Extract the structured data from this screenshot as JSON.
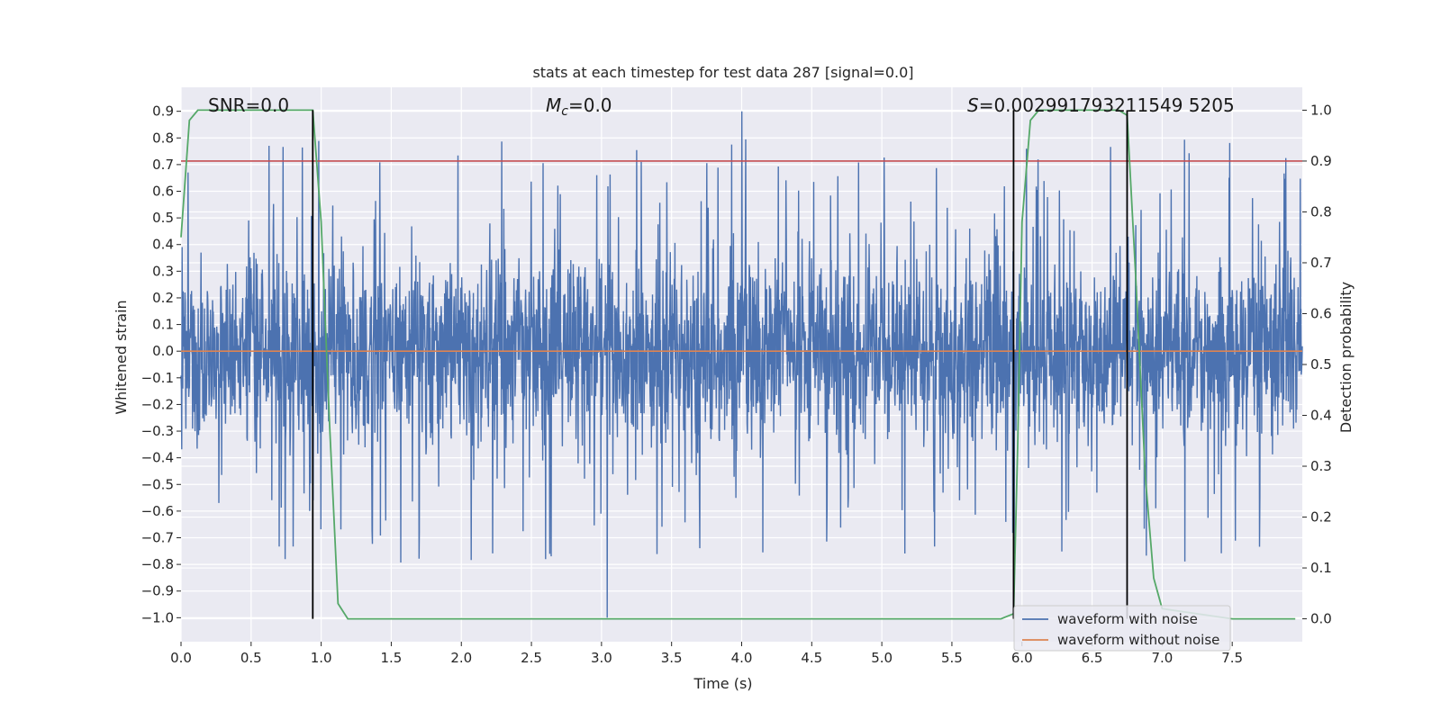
{
  "chart_data": {
    "type": "line",
    "title": "stats at each timestep for test data 287 [signal=0.0]",
    "xlabel": "Time (s)",
    "ylabel_left": "Whitened strain",
    "ylabel_right": "Detection probability",
    "xlim": [
      0.0,
      8.0
    ],
    "ylim_left": [
      -1.09,
      0.99
    ],
    "ylim_right": [
      -0.045,
      1.045
    ],
    "x_ticks": [
      0.0,
      0.5,
      1.0,
      1.5,
      2.0,
      2.5,
      3.0,
      3.5,
      4.0,
      4.5,
      5.0,
      5.5,
      6.0,
      6.5,
      7.0,
      7.5
    ],
    "x_tick_labels": [
      "0.0",
      "0.5",
      "1.0",
      "1.5",
      "2.0",
      "2.5",
      "3.0",
      "3.5",
      "4.0",
      "4.5",
      "5.0",
      "5.5",
      "6.0",
      "6.5",
      "7.0",
      "7.5"
    ],
    "y_left_ticks": [
      0.9,
      0.8,
      0.7,
      0.6,
      0.5,
      0.4,
      0.3,
      0.2,
      0.1,
      0.0,
      -0.1,
      -0.2,
      -0.3,
      -0.4,
      -0.5,
      -0.6,
      -0.7,
      -0.8,
      -0.9,
      -1.0
    ],
    "y_left_tick_labels": [
      "0.9",
      "0.8",
      "0.7",
      "0.6",
      "0.5",
      "0.4",
      "0.3",
      "0.2",
      "0.1",
      "0.0",
      "−0.1",
      "−0.2",
      "−0.3",
      "−0.4",
      "−0.5",
      "−0.6",
      "−0.7",
      "−0.8",
      "−0.9",
      "−1.0"
    ],
    "y_right_ticks": [
      1.0,
      0.9,
      0.8,
      0.7,
      0.6,
      0.5,
      0.4,
      0.3,
      0.2,
      0.1,
      0.0
    ],
    "y_right_tick_labels": [
      "1.0",
      "0.9",
      "0.8",
      "0.7",
      "0.6",
      "0.5",
      "0.4",
      "0.3",
      "0.2",
      "0.1",
      "0.0"
    ],
    "annotations": {
      "snr": "SNR=0.0",
      "mc_base": "M",
      "mc_sub": "c",
      "mc_rest": "=0.0",
      "s_italic": "S",
      "s_rest": "=0.002991793211549 5205"
    },
    "threshold": {
      "value": 0.9,
      "axis": "right",
      "color": "#c44e52"
    },
    "vertical_markers": [
      0.94,
      5.94,
      6.75
    ],
    "series": [
      {
        "name": "waveform with noise",
        "axis": "left",
        "color": "#4c72b0",
        "kind": "noise",
        "samples": 16384,
        "typical_range": [
          -0.45,
          0.45
        ],
        "extremes": [
          0.9,
          -1.0
        ]
      },
      {
        "name": "waveform without noise",
        "axis": "left",
        "color": "#dd8452",
        "x": [
          0.0,
          8.0
        ],
        "y": [
          0.0,
          0.0
        ]
      },
      {
        "name": "detection probability",
        "axis": "right",
        "color": "#55a868",
        "x": [
          0.0,
          0.06,
          0.12,
          0.2,
          0.5,
          0.75,
          0.88,
          0.94,
          1.0,
          1.06,
          1.12,
          1.19,
          1.5,
          3.0,
          5.0,
          5.85,
          5.94,
          5.97,
          6.0,
          6.06,
          6.12,
          6.5,
          6.69,
          6.75,
          6.81,
          6.88,
          6.94,
          7.0,
          7.5,
          7.95
        ],
        "y": [
          0.75,
          0.98,
          1.0,
          1.0,
          1.0,
          1.0,
          1.0,
          1.0,
          0.78,
          0.38,
          0.03,
          0.0,
          0.0,
          0.0,
          0.0,
          0.0,
          0.01,
          0.35,
          0.78,
          0.98,
          1.0,
          1.0,
          1.0,
          0.99,
          0.68,
          0.28,
          0.08,
          0.02,
          0.0,
          0.0
        ]
      }
    ],
    "legend": {
      "placement": "lower-right",
      "entries": [
        "waveform with noise",
        "waveform without noise"
      ]
    },
    "style": {
      "background": "#eaeaf2",
      "grid": true,
      "grid_color": "#ffffff"
    }
  }
}
